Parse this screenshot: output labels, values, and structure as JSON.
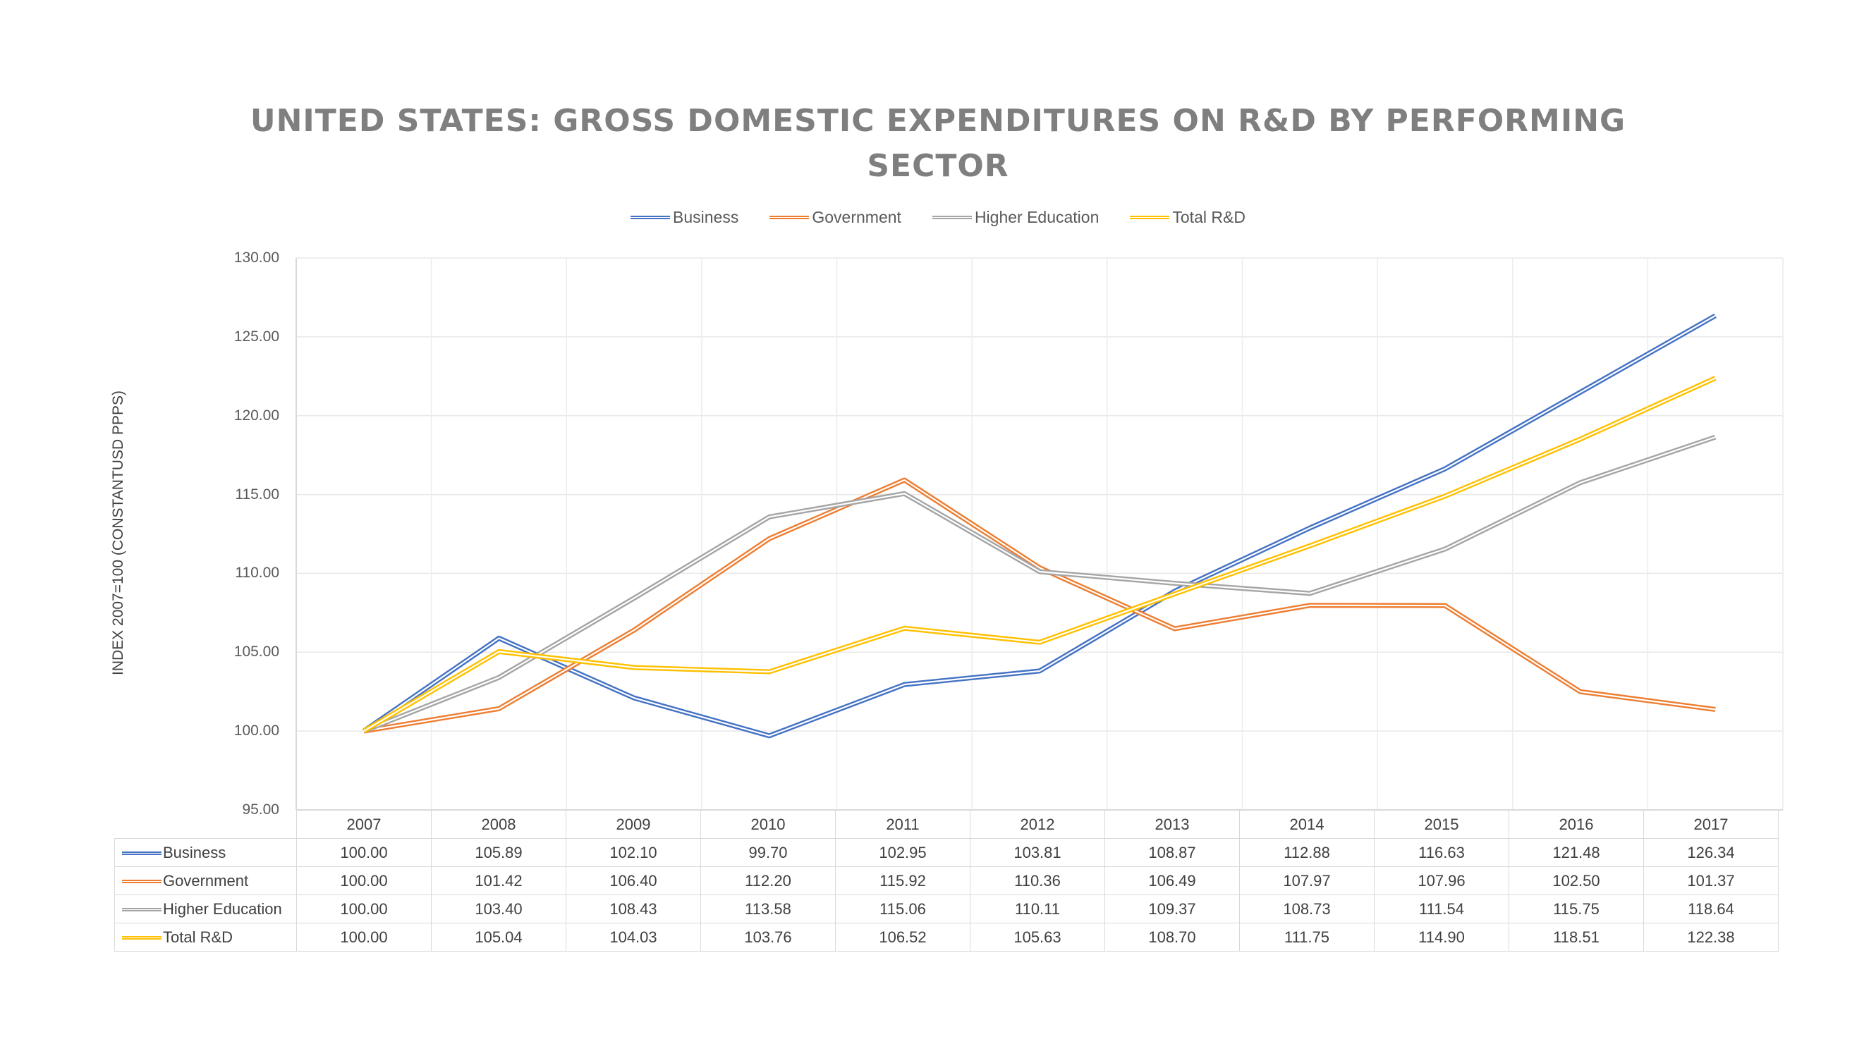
{
  "chart_data": {
    "type": "line",
    "title": "UNITED STATES: GROSS DOMESTIC EXPENDITURES ON R&D BY PERFORMING SECTOR",
    "title_lines": [
      "UNITED STATES: GROSS DOMESTIC EXPENDITURES ON R&D BY PERFORMING",
      "SECTOR"
    ],
    "ylabel": "INDEX 2007=100 (CONSTANTUSD PPPS)",
    "xlabel": "",
    "categories": [
      "2007",
      "2008",
      "2009",
      "2010",
      "2011",
      "2012",
      "2013",
      "2014",
      "2015",
      "2016",
      "2017"
    ],
    "ylim": [
      95,
      130
    ],
    "yticks": [
      "95.00",
      "100.00",
      "105.00",
      "110.00",
      "115.00",
      "120.00",
      "125.00",
      "130.00"
    ],
    "grid": true,
    "legend_position": "top",
    "data_table": true,
    "series": [
      {
        "name": "Business",
        "color": "#4472c4",
        "values": [
          100.0,
          105.89,
          102.1,
          99.7,
          102.95,
          103.81,
          108.87,
          112.88,
          116.63,
          121.48,
          126.34
        ],
        "labels": [
          "100.00",
          "105.89",
          "102.10",
          "99.70",
          "102.95",
          "103.81",
          "108.87",
          "112.88",
          "116.63",
          "121.48",
          "126.34"
        ]
      },
      {
        "name": "Government",
        "color": "#ed7d31",
        "values": [
          100.0,
          101.42,
          106.4,
          112.2,
          115.92,
          110.36,
          106.49,
          107.97,
          107.96,
          102.5,
          101.37
        ],
        "labels": [
          "100.00",
          "101.42",
          "106.40",
          "112.20",
          "115.92",
          "110.36",
          "106.49",
          "107.97",
          "107.96",
          "102.50",
          "101.37"
        ]
      },
      {
        "name": "Higher Education",
        "color": "#a5a5a5",
        "values": [
          100.0,
          103.4,
          108.43,
          113.58,
          115.06,
          110.11,
          109.37,
          108.73,
          111.54,
          115.75,
          118.64
        ],
        "labels": [
          "100.00",
          "103.40",
          "108.43",
          "113.58",
          "115.06",
          "110.11",
          "109.37",
          "108.73",
          "111.54",
          "115.75",
          "118.64"
        ]
      },
      {
        "name": "Total R&D",
        "color": "#ffc000",
        "values": [
          100.0,
          105.04,
          104.03,
          103.76,
          106.52,
          105.63,
          108.7,
          111.75,
          114.9,
          118.51,
          122.38
        ],
        "labels": [
          "100.00",
          "105.04",
          "104.03",
          "103.76",
          "106.52",
          "105.63",
          "108.70",
          "111.75",
          "114.90",
          "118.51",
          "122.38"
        ]
      }
    ]
  }
}
